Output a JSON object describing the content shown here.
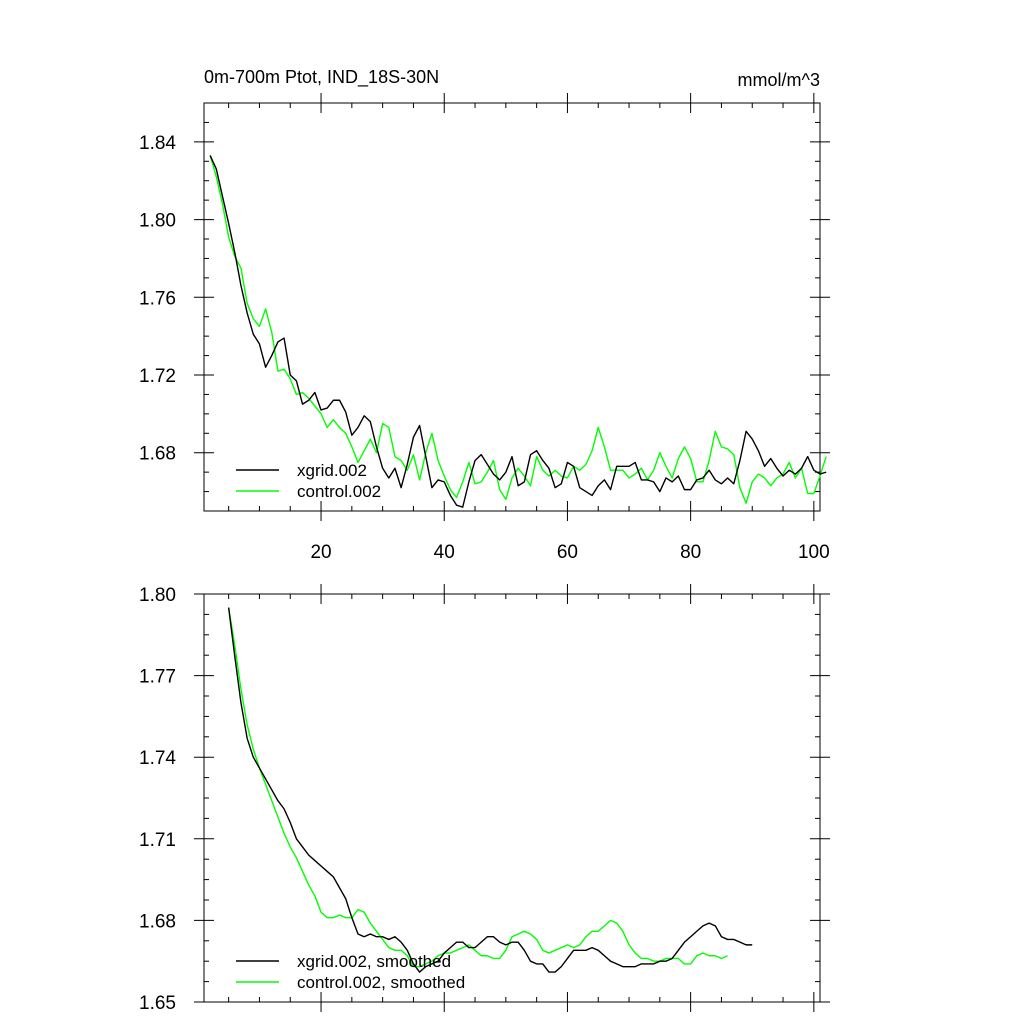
{
  "header": {
    "title": "0m-700m Ptot, IND_18S-30N",
    "units": "mmol/m^3"
  },
  "colors": {
    "series_a": "#000000",
    "series_b": "#00ff00",
    "axis": "#000000",
    "background": "#ffffff"
  },
  "chart_data": [
    {
      "type": "line",
      "title": "0m-700m Ptot, IND_18S-30N",
      "units": "mmol/m^3",
      "xlim": [
        1,
        101
      ],
      "ylim": [
        1.65,
        1.86
      ],
      "xticks": [
        20,
        40,
        60,
        80,
        100
      ],
      "xtick_labels": [
        "20",
        "40",
        "60",
        "80",
        "100"
      ],
      "yticks": [
        1.68,
        1.72,
        1.76,
        1.8,
        1.84
      ],
      "ytick_labels": [
        "1.68",
        "1.72",
        "1.76",
        "1.80",
        "1.84"
      ],
      "legend": "bottom-left",
      "x_start": 2,
      "series": [
        {
          "name": "xgrid.002",
          "color": "#000000",
          "values": [
            1.833,
            1.826,
            1.812,
            1.798,
            1.783,
            1.766,
            1.752,
            1.741,
            1.736,
            1.724,
            1.73,
            1.737,
            1.739,
            1.72,
            1.717,
            1.705,
            1.707,
            1.711,
            1.702,
            1.703,
            1.707,
            1.707,
            1.701,
            1.689,
            1.693,
            1.699,
            1.696,
            1.683,
            1.672,
            1.667,
            1.672,
            1.662,
            1.674,
            1.688,
            1.694,
            1.678,
            1.662,
            1.666,
            1.665,
            1.658,
            1.653,
            1.652,
            1.665,
            1.676,
            1.679,
            1.674,
            1.669,
            1.666,
            1.67,
            1.678,
            1.663,
            1.665,
            1.679,
            1.681,
            1.676,
            1.672,
            1.662,
            1.664,
            1.675,
            1.673,
            1.662,
            1.66,
            1.658,
            1.663,
            1.666,
            1.661,
            1.673,
            1.673,
            1.673,
            1.675,
            1.666,
            1.666,
            1.665,
            1.66,
            1.667,
            1.665,
            1.668,
            1.661,
            1.661,
            1.666,
            1.667,
            1.671,
            1.666,
            1.664,
            1.667,
            1.664,
            1.676,
            1.691,
            1.687,
            1.681,
            1.673,
            1.677,
            1.672,
            1.668,
            1.671,
            1.669,
            1.672,
            1.678,
            1.671,
            1.669,
            1.67
          ]
        },
        {
          "name": "control.002",
          "color": "#00ff00",
          "values": [
            1.833,
            1.822,
            1.808,
            1.791,
            1.781,
            1.775,
            1.757,
            1.749,
            1.745,
            1.754,
            1.742,
            1.722,
            1.723,
            1.718,
            1.71,
            1.711,
            1.708,
            1.704,
            1.7,
            1.693,
            1.697,
            1.693,
            1.69,
            1.683,
            1.675,
            1.681,
            1.687,
            1.68,
            1.695,
            1.693,
            1.678,
            1.676,
            1.671,
            1.679,
            1.666,
            1.68,
            1.69,
            1.676,
            1.668,
            1.661,
            1.657,
            1.665,
            1.675,
            1.664,
            1.665,
            1.67,
            1.676,
            1.661,
            1.656,
            1.667,
            1.672,
            1.668,
            1.663,
            1.678,
            1.671,
            1.668,
            1.671,
            1.668,
            1.667,
            1.673,
            1.671,
            1.674,
            1.681,
            1.693,
            1.683,
            1.671,
            1.671,
            1.671,
            1.667,
            1.669,
            1.672,
            1.666,
            1.671,
            1.68,
            1.673,
            1.667,
            1.677,
            1.683,
            1.677,
            1.665,
            1.665,
            1.676,
            1.691,
            1.683,
            1.682,
            1.679,
            1.662,
            1.654,
            1.665,
            1.669,
            1.667,
            1.663,
            1.667,
            1.669,
            1.675,
            1.667,
            1.672,
            1.659,
            1.659,
            1.668,
            1.678
          ]
        }
      ]
    },
    {
      "type": "line",
      "title": "",
      "xlim": [
        1,
        101
      ],
      "ylim": [
        1.65,
        1.8
      ],
      "xticks": [
        20,
        40,
        60,
        80,
        100
      ],
      "xtick_labels": [],
      "yticks": [
        1.65,
        1.68,
        1.71,
        1.74,
        1.77,
        1.8
      ],
      "ytick_labels": [
        "1.65",
        "1.68",
        "1.71",
        "1.74",
        "1.77",
        "1.80"
      ],
      "legend": "bottom-left",
      "x_start": 5,
      "series": [
        {
          "name": "xgrid.002, smoothed",
          "color": "#000000",
          "values": [
            1.795,
            1.777,
            1.76,
            1.747,
            1.74,
            1.736,
            1.732,
            1.728,
            1.724,
            1.721,
            1.716,
            1.71,
            1.707,
            1.704,
            1.702,
            1.7,
            1.698,
            1.696,
            1.692,
            1.688,
            1.681,
            1.675,
            1.674,
            1.675,
            1.674,
            1.674,
            1.673,
            1.674,
            1.672,
            1.669,
            1.664,
            1.661,
            1.663,
            1.664,
            1.665,
            1.668,
            1.67,
            1.672,
            1.672,
            1.67,
            1.67,
            1.672,
            1.674,
            1.674,
            1.672,
            1.671,
            1.672,
            1.672,
            1.669,
            1.665,
            1.664,
            1.664,
            1.661,
            1.661,
            1.663,
            1.666,
            1.669,
            1.669,
            1.669,
            1.67,
            1.669,
            1.667,
            1.665,
            1.664,
            1.663,
            1.663,
            1.663,
            1.664,
            1.664,
            1.664,
            1.665,
            1.665,
            1.666,
            1.669,
            1.672,
            1.674,
            1.676,
            1.678,
            1.679,
            1.678,
            1.674,
            1.673,
            1.673,
            1.672,
            1.671,
            1.671
          ]
        },
        {
          "name": "control.002, smoothed",
          "color": "#00ff00",
          "values": [
            1.795,
            1.781,
            1.765,
            1.752,
            1.743,
            1.736,
            1.73,
            1.724,
            1.718,
            1.712,
            1.707,
            1.703,
            1.698,
            1.693,
            1.689,
            1.683,
            1.681,
            1.681,
            1.682,
            1.681,
            1.681,
            1.684,
            1.683,
            1.679,
            1.676,
            1.673,
            1.67,
            1.669,
            1.669,
            1.667,
            1.663,
            1.663,
            1.664,
            1.665,
            1.667,
            1.668,
            1.668,
            1.669,
            1.67,
            1.671,
            1.669,
            1.667,
            1.667,
            1.666,
            1.666,
            1.669,
            1.674,
            1.675,
            1.676,
            1.675,
            1.673,
            1.669,
            1.668,
            1.669,
            1.67,
            1.671,
            1.67,
            1.671,
            1.674,
            1.676,
            1.676,
            1.678,
            1.68,
            1.679,
            1.676,
            1.671,
            1.668,
            1.666,
            1.666,
            1.665,
            1.665,
            1.666,
            1.666,
            1.666,
            1.664,
            1.664,
            1.667,
            1.668,
            1.667,
            1.667,
            1.666,
            1.667
          ]
        }
      ]
    }
  ]
}
